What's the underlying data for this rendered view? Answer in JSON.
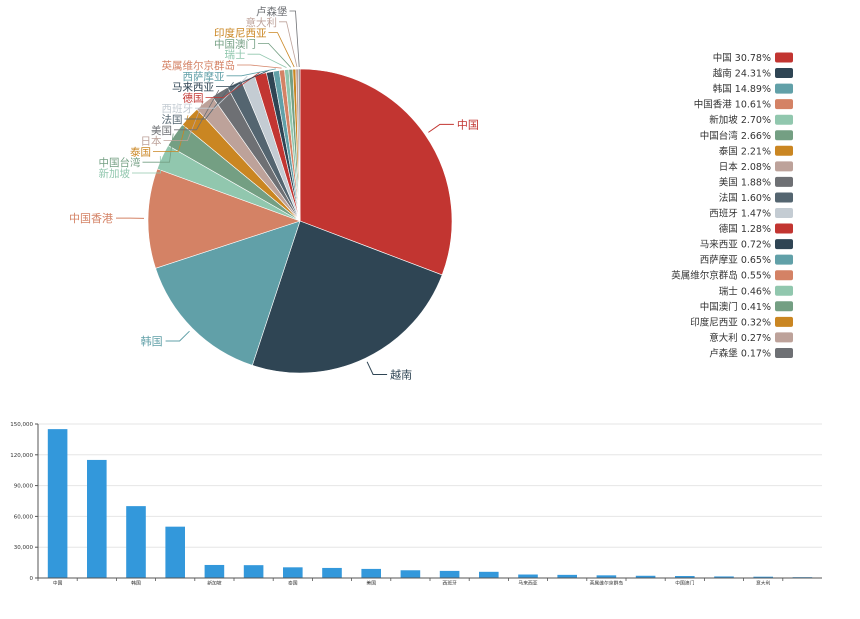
{
  "chart_data": [
    {
      "type": "pie",
      "title": "",
      "categories": [
        "中国",
        "越南",
        "韩国",
        "中国香港",
        "新加坡",
        "中国台湾",
        "泰国",
        "日本",
        "美国",
        "法国",
        "西班牙",
        "德国",
        "马来西亚",
        "西萨摩亚",
        "英属维尔京群岛",
        "瑞士",
        "中国澳门",
        "印度尼西亚",
        "意大利",
        "卢森堡"
      ],
      "values": [
        30.78,
        24.31,
        14.89,
        10.61,
        2.7,
        2.66,
        2.21,
        2.08,
        1.88,
        1.6,
        1.47,
        1.28,
        0.72,
        0.65,
        0.55,
        0.46,
        0.41,
        0.32,
        0.27,
        0.17
      ],
      "percent_labels": [
        "30.78%",
        "24.31%",
        "14.89%",
        "10.61%",
        "2.70%",
        "2.66%",
        "2.21%",
        "2.08%",
        "1.88%",
        "1.60%",
        "1.47%",
        "1.28%",
        "0.72%",
        "0.65%",
        "0.55%",
        "0.46%",
        "0.41%",
        "0.32%",
        "0.27%",
        "0.17%"
      ],
      "colors": [
        "#c23531",
        "#2f4554",
        "#61a0a8",
        "#d48265",
        "#91c7ae",
        "#749f83",
        "#ca8622",
        "#bda29a",
        "#6e7074",
        "#546570",
        "#c4ccd3",
        "#c23531",
        "#2f4554",
        "#61a0a8",
        "#d48265",
        "#91c7ae",
        "#749f83",
        "#ca8622",
        "#bda29a",
        "#6e7074"
      ],
      "legend_position": "right"
    },
    {
      "type": "bar",
      "title": "",
      "categories": [
        "中国",
        "越南",
        "韩国",
        "中国香港",
        "新加坡",
        "中国台湾",
        "泰国",
        "日本",
        "美国",
        "法国",
        "西班牙",
        "德国",
        "马来西亚",
        "西萨摩亚",
        "英属维尔京群岛",
        "瑞士",
        "中国澳门",
        "印度尼西亚",
        "意大利",
        "卢森堡"
      ],
      "values": [
        145000,
        115000,
        70000,
        50000,
        12700,
        12500,
        10400,
        9800,
        8850,
        7530,
        6920,
        6030,
        3390,
        3060,
        2590,
        2170,
        1930,
        1510,
        1270,
        800
      ],
      "ylim": [
        0,
        150000
      ],
      "yticks": [
        0,
        30000,
        60000,
        90000,
        120000,
        150000
      ],
      "ytick_labels": [
        "0",
        "30,000",
        "60,000",
        "90,000",
        "120,000",
        "150,000"
      ],
      "xtick_labels_shown": [
        "中国",
        "",
        "韩国",
        "",
        "新加坡",
        "",
        "泰国",
        "",
        "美国",
        "",
        "西班牙",
        "",
        "马来西亚",
        "",
        "英属维尔京群岛",
        "",
        "中国澳门",
        "",
        "意大利",
        ""
      ],
      "bar_color": "#3398db",
      "xlabel": "",
      "ylabel": ""
    }
  ]
}
